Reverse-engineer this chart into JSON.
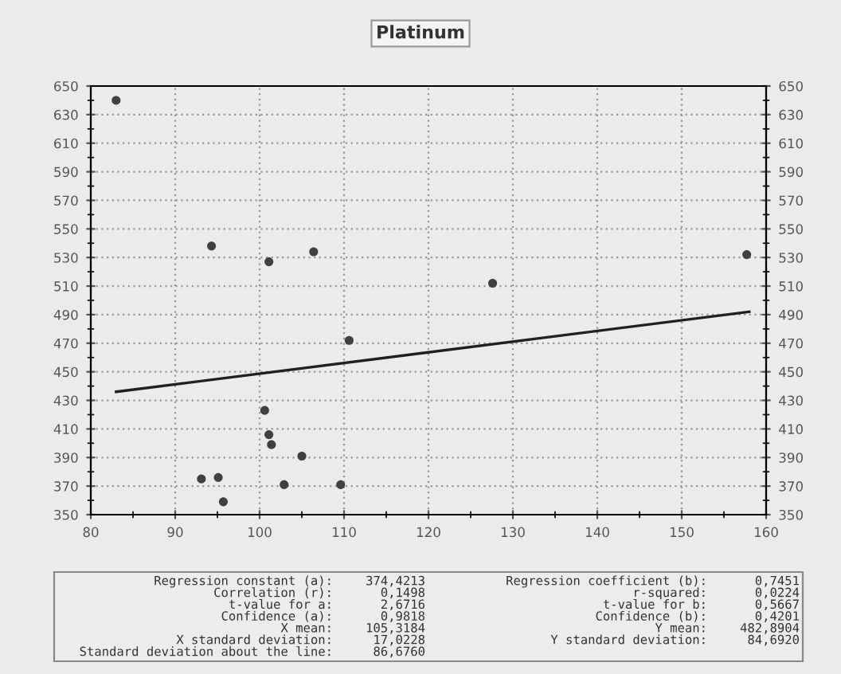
{
  "chart_data": {
    "type": "scatter",
    "title": "Platinum",
    "series": [
      {
        "color": "#404040",
        "marker": "circle",
        "x": [
          83,
          94.3,
          101.1,
          106.4,
          127.6,
          157.7,
          110.6,
          100.6,
          101.1,
          101.4,
          105.0,
          93.1,
          95.1,
          95.7,
          102.9,
          109.6
        ],
        "values": [
          640,
          538,
          527,
          534,
          512,
          532,
          472,
          423,
          406,
          399,
          391,
          375,
          376,
          359,
          371,
          371
        ]
      },
      {
        "type": "line",
        "color": "#202020",
        "x": [
          83,
          158
        ],
        "values": [
          436,
          492
        ]
      }
    ],
    "xlim": [
      80,
      160
    ],
    "xticks": [
      80,
      90,
      100,
      110,
      120,
      130,
      140,
      150,
      160
    ],
    "ylim": [
      350,
      650
    ],
    "yticks": [
      350,
      370,
      390,
      410,
      430,
      450,
      470,
      490,
      510,
      530,
      550,
      570,
      590,
      610,
      630,
      650
    ],
    "y2lim": [
      350,
      650
    ],
    "y2ticks": [
      350,
      370,
      390,
      410,
      430,
      450,
      470,
      490,
      510,
      530,
      550,
      570,
      590,
      610,
      630,
      650
    ],
    "grid": true,
    "line_style": "solid",
    "annotations": [
      "Regression constant (a):",
      "374,4213",
      "Correlation (r):",
      "0,1498",
      "t-value for a:",
      "2,6716",
      "Confidence (a):",
      "0,9818",
      "X mean:",
      "105,3184",
      "X standard deviation:",
      "17,0228",
      "Standard deviation about the line:",
      "86,6760",
      "Regression coefficient (b):",
      "0,7451",
      "r-squared:",
      "0,0224",
      "t-value for b:",
      "0,5667",
      "Confidence (b):",
      "0,4201",
      "Y mean:",
      "482,8904",
      "Y standard deviation:",
      "84,6920"
    ]
  }
}
